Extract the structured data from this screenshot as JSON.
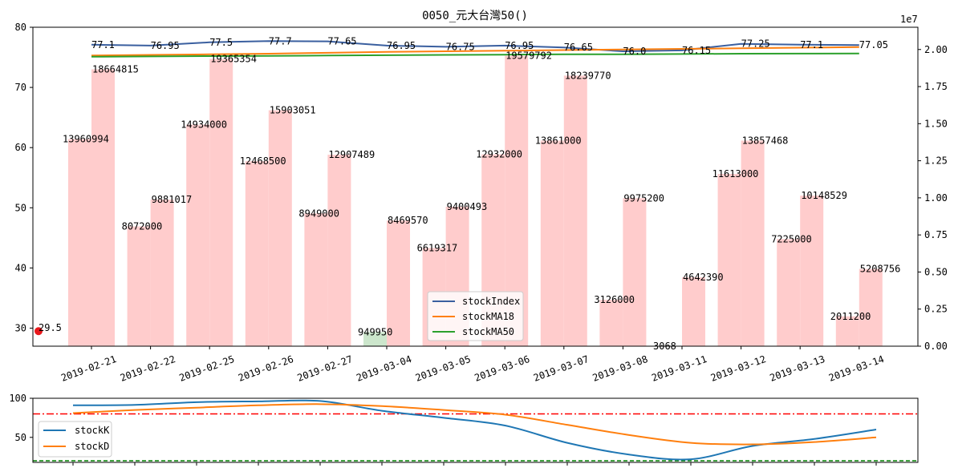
{
  "colors": {
    "up_bar": "#ffcccc",
    "down_bar": "#cce6cc",
    "stockIndex": "#3a5f9f",
    "stockMA18": "#ff7f0e",
    "stockMA50": "#2ca02c",
    "stockK": "#1f77b4",
    "stockD": "#ff7f0e",
    "start_marker": "#e8191c",
    "overbought_line": "#ff0000",
    "oversold_line": "#008000"
  },
  "chart_data": [
    {
      "type": "bar",
      "title": "0050_元大台灣50()",
      "offset_label": "1e7",
      "categories": [
        "2019-02-21",
        "2019-02-22",
        "2019-02-25",
        "2019-02-26",
        "2019-02-27",
        "2019-03-04",
        "2019-03-05",
        "2019-03-06",
        "2019-03-07",
        "2019-03-08",
        "2019-03-11",
        "2019-03-12",
        "2019-03-13",
        "2019-03-14"
      ],
      "volume_bars": [
        {
          "label": "13960994",
          "value": 13960994,
          "slot": 0,
          "side": "left",
          "dir": "up"
        },
        {
          "label": "18664815",
          "value": 18664815,
          "slot": 0,
          "side": "right",
          "dir": "up"
        },
        {
          "label": "8072000",
          "value": 8072000,
          "slot": 1,
          "side": "left",
          "dir": "up"
        },
        {
          "label": "9881017",
          "value": 9881017,
          "slot": 1,
          "side": "right",
          "dir": "up"
        },
        {
          "label": "14934000",
          "value": 14934000,
          "slot": 2,
          "side": "left",
          "dir": "up"
        },
        {
          "label": "19365354",
          "value": 19365354,
          "slot": 2,
          "side": "right",
          "dir": "up"
        },
        {
          "label": "12468500",
          "value": 12468500,
          "slot": 3,
          "side": "left",
          "dir": "up"
        },
        {
          "label": "15903051",
          "value": 15903051,
          "slot": 3,
          "side": "right",
          "dir": "up"
        },
        {
          "label": "8949000",
          "value": 8949000,
          "slot": 4,
          "side": "left",
          "dir": "up"
        },
        {
          "label": "12907489",
          "value": 12907489,
          "slot": 4,
          "side": "right",
          "dir": "up"
        },
        {
          "label": "949950",
          "value": 949950,
          "slot": 5,
          "side": "left",
          "dir": "down"
        },
        {
          "label": "8469570",
          "value": 8469570,
          "slot": 5,
          "side": "right",
          "dir": "up"
        },
        {
          "label": "6619317",
          "value": 6619317,
          "slot": 6,
          "side": "left",
          "dir": "up"
        },
        {
          "label": "9400493",
          "value": 9400493,
          "slot": 6,
          "side": "right",
          "dir": "up"
        },
        {
          "label": "12932000",
          "value": 12932000,
          "slot": 7,
          "side": "left",
          "dir": "up"
        },
        {
          "label": "19579792",
          "value": 19579792,
          "slot": 7,
          "side": "right",
          "dir": "up"
        },
        {
          "label": "13861000",
          "value": 13861000,
          "slot": 8,
          "side": "left",
          "dir": "up"
        },
        {
          "label": "18239770",
          "value": 18239770,
          "slot": 8,
          "side": "right",
          "dir": "up"
        },
        {
          "label": "3126000",
          "value": 3126000,
          "slot": 9,
          "side": "left",
          "dir": "up"
        },
        {
          "label": "9975200",
          "value": 9975200,
          "slot": 9,
          "side": "right",
          "dir": "up"
        },
        {
          "label": "3068",
          "value": 3068,
          "slot": 10,
          "side": "left",
          "dir": "up"
        },
        {
          "label": "4642390",
          "value": 4642390,
          "slot": 10,
          "side": "right",
          "dir": "up"
        },
        {
          "label": "11613000",
          "value": 11613000,
          "slot": 11,
          "side": "left",
          "dir": "up"
        },
        {
          "label": "13857468",
          "value": 13857468,
          "slot": 11,
          "side": "right",
          "dir": "up"
        },
        {
          "label": "7225000",
          "value": 7225000,
          "slot": 12,
          "side": "left",
          "dir": "up"
        },
        {
          "label": "10148529",
          "value": 10148529,
          "slot": 12,
          "side": "right",
          "dir": "up"
        },
        {
          "label": "2011200",
          "value": 2011200,
          "slot": 13,
          "side": "left",
          "dir": "up"
        },
        {
          "label": "5208756",
          "value": 5208756,
          "slot": 13,
          "side": "right",
          "dir": "up"
        }
      ],
      "series": [
        {
          "name": "stockIndex",
          "values": [
            77.1,
            76.95,
            77.5,
            77.7,
            77.65,
            76.95,
            76.75,
            76.95,
            76.65,
            76.0,
            76.15,
            77.25,
            77.1,
            77.05
          ],
          "value_labels": [
            "77.1",
            "76.95",
            "77.5",
            "77.7",
            "77.65",
            "76.95",
            "76.75",
            "76.95",
            "76.65",
            "76.0",
            "76.15",
            "77.25",
            "77.1",
            "77.05"
          ]
        },
        {
          "name": "stockMA18",
          "values": [
            75.3,
            75.4,
            75.5,
            75.6,
            75.75,
            75.9,
            76.0,
            76.1,
            76.2,
            76.3,
            76.4,
            76.5,
            76.6,
            76.7
          ]
        },
        {
          "name": "stockMA50",
          "values": [
            75.1,
            75.15,
            75.2,
            75.25,
            75.3,
            75.35,
            75.4,
            75.45,
            75.5,
            75.5,
            75.55,
            75.6,
            75.62,
            75.65
          ]
        }
      ],
      "start_point": {
        "label": "29.5",
        "value": 29.5
      },
      "ylim_left": [
        27,
        80
      ],
      "yticks_left": [
        "30",
        "40",
        "50",
        "60",
        "70",
        "80"
      ],
      "ylim_right": [
        0,
        2.15
      ],
      "yticks_right": [
        "0.00",
        "0.25",
        "0.50",
        "0.75",
        "1.00",
        "1.25",
        "1.50",
        "1.75",
        "2.00"
      ],
      "legend": {
        "entries": [
          "stockIndex",
          "stockMA18",
          "stockMA50"
        ],
        "placement": "lower-center"
      },
      "grid": false
    },
    {
      "type": "line",
      "series": [
        {
          "name": "stockK",
          "values": [
            91,
            91.5,
            95,
            96,
            96.5,
            84,
            75,
            65,
            43,
            28,
            22,
            39,
            48,
            60
          ]
        },
        {
          "name": "stockD",
          "values": [
            81,
            85,
            88,
            91,
            92.5,
            90,
            85,
            79,
            66,
            53,
            43,
            41,
            44,
            50
          ]
        }
      ],
      "reference_lines": [
        {
          "value": 80,
          "style": "dash-dot",
          "color_key": "overbought_line"
        },
        {
          "value": 20,
          "style": "dashed",
          "color_key": "oversold_line"
        }
      ],
      "ylim": [
        18,
        100
      ],
      "yticks": [
        "50",
        "100"
      ],
      "legend": {
        "entries": [
          "stockK",
          "stockD"
        ],
        "placement": "left"
      },
      "grid": false
    }
  ]
}
